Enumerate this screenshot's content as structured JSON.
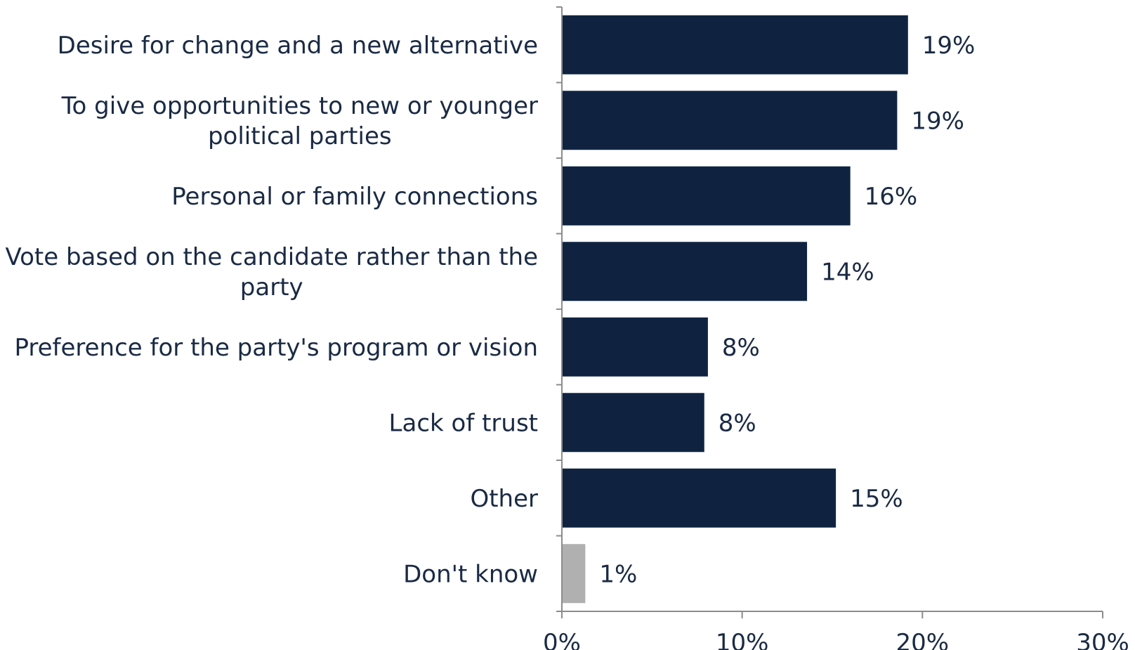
{
  "chart_data": {
    "type": "bar",
    "orientation": "horizontal",
    "title": "",
    "xlabel": "",
    "ylabel": "",
    "categories": [
      "Desire for change and a new alternative",
      "To give opportunities to new or younger political parties",
      "Personal or family connections",
      "Vote based on the candidate rather than the party",
      "Preference for the party's program or vision",
      "Lack of trust",
      "Other",
      "Don't know"
    ],
    "label_lines": [
      [
        "Desire for change and a new alternative"
      ],
      [
        "To give opportunities to new or younger",
        "political parties"
      ],
      [
        "Personal or family connections"
      ],
      [
        "Vote based on the candidate rather than the",
        "party"
      ],
      [
        "Preference for the party's program or vision"
      ],
      [
        "Lack of trust"
      ],
      [
        "Other"
      ],
      [
        "Don't know"
      ]
    ],
    "values": [
      19.2,
      18.6,
      16.0,
      13.6,
      8.1,
      7.9,
      15.2,
      1.3
    ],
    "value_labels": [
      "19%",
      "19%",
      "16%",
      "14%",
      "8%",
      "8%",
      "15%",
      "1%"
    ],
    "xlim": [
      0,
      30
    ],
    "x_ticks": [
      0,
      10,
      20,
      30
    ],
    "x_tick_labels": [
      "0%",
      "10%",
      "20%",
      "30%"
    ],
    "grid": false,
    "legend": "none",
    "colors": {
      "bar": "#0f2341",
      "bar_dont_know": "#b0b0b0",
      "axis": "#8c8c8c",
      "text": "#1a2a44"
    }
  }
}
